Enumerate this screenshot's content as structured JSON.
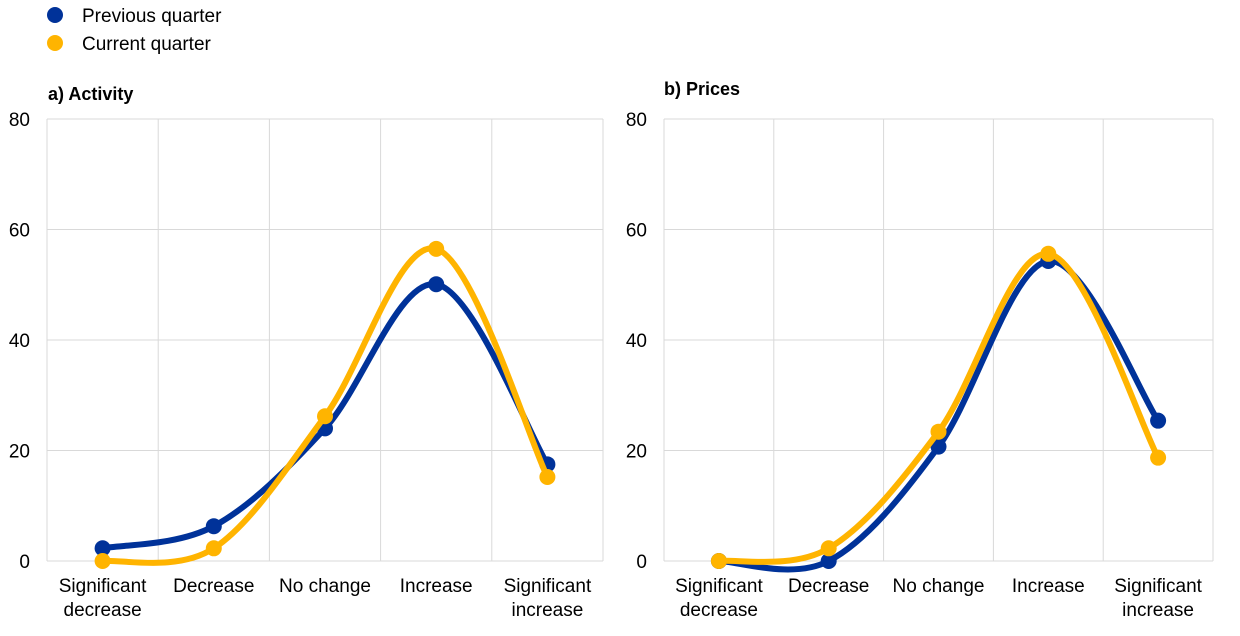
{
  "legend": [
    {
      "name": "Previous quarter",
      "color": "#003299"
    },
    {
      "name": "Current quarter",
      "color": "#FFB400"
    }
  ],
  "chart_data": [
    {
      "type": "line",
      "title": "a) Activity",
      "categories": [
        "Significant decrease",
        "Decrease",
        "No change",
        "Increase",
        "Significant increase"
      ],
      "ylim": [
        0,
        80
      ],
      "yticks": [
        0,
        20,
        40,
        60,
        80
      ],
      "grid": true,
      "series": [
        {
          "name": "Previous quarter",
          "values": [
            2.3,
            6.3,
            24.0,
            50.1,
            17.5
          ]
        },
        {
          "name": "Current quarter",
          "values": [
            0,
            2.3,
            26.2,
            56.5,
            15.2
          ]
        }
      ]
    },
    {
      "type": "line",
      "title": "b) Prices",
      "categories": [
        "Significant decrease",
        "Decrease",
        "No change",
        "Increase",
        "Significant increase"
      ],
      "ylim": [
        0,
        80
      ],
      "yticks": [
        0,
        20,
        40,
        60,
        80
      ],
      "grid": true,
      "series": [
        {
          "name": "Previous quarter",
          "values": [
            0,
            0,
            20.7,
            54.3,
            25.4
          ]
        },
        {
          "name": "Current quarter",
          "values": [
            0,
            2.3,
            23.4,
            55.6,
            18.7
          ]
        }
      ]
    }
  ]
}
